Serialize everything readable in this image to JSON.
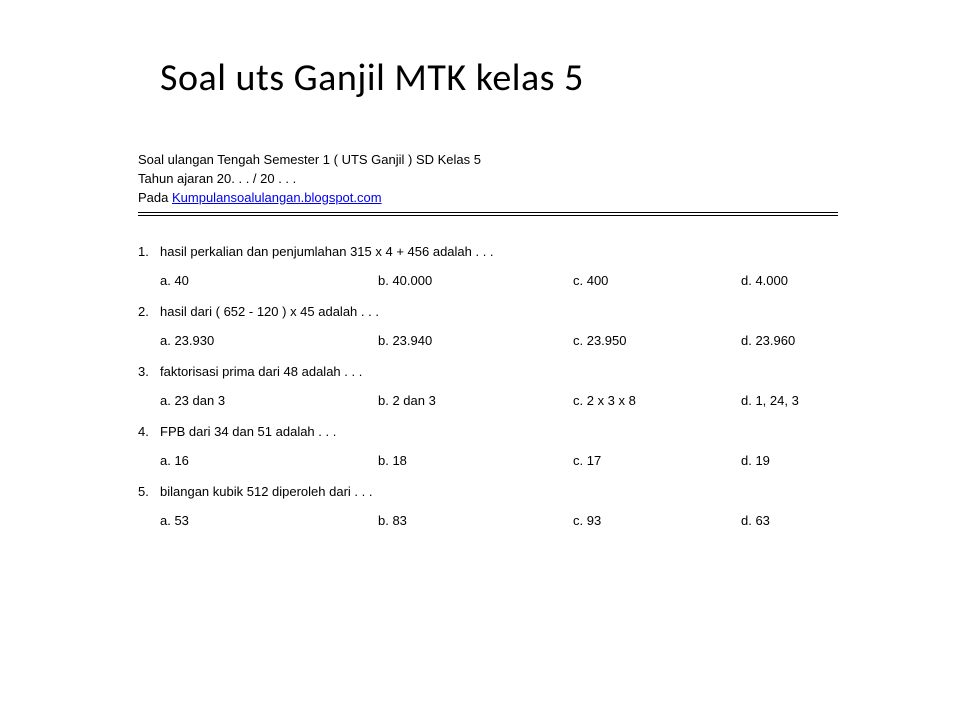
{
  "title": "Soal uts Ganjil MTK kelas 5",
  "header": {
    "line1": "Soal ulangan Tengah Semester 1 ( UTS Ganjil )  SD Kelas 5",
    "line2": "Tahun ajaran 20. . . / 20 . . .",
    "line3_prefix": "Pada ",
    "link_text": "Kumpulansoalulangan.blogspot.com"
  },
  "questions": [
    {
      "num": "1.",
      "text": "hasil perkalian dan penjumlahan 315 x 4 + 456 adalah . . .",
      "a": "a. 40",
      "b": "b. 40.000",
      "c": "c. 400",
      "d": "d. 4.000"
    },
    {
      "num": "2.",
      "text": "hasil dari  ( 652 - 120 ) x 45 adalah . . .",
      "a": "a. 23.930",
      "b": "b. 23.940",
      "c": "c. 23.950",
      "d": "d. 23.960"
    },
    {
      "num": "3.",
      "text": "faktorisasi prima dari 48 adalah .  . .",
      "a": "a. 23 dan 3",
      "b": "b. 2 dan 3",
      "c": "c. 2 x 3 x 8",
      "d": "d. 1, 24, 3"
    },
    {
      "num": "4.",
      "text": "FPB dari 34 dan 51 adalah . . .",
      "a": "a. 16",
      "b": "b. 18",
      "c": " c. 17",
      "d": "d. 19"
    },
    {
      "num": "5.",
      "text": "bilangan kubik 512 diperoleh dari . . .",
      "a": "a. 53",
      "b": "b. 83",
      "c": " c. 93",
      "d": "d. 63"
    }
  ]
}
